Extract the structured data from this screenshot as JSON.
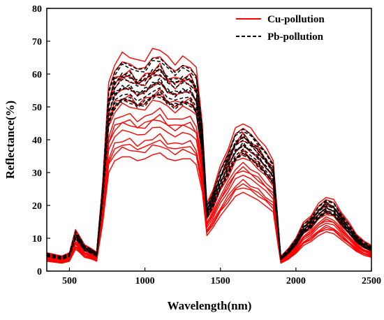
{
  "chart_data": {
    "type": "line",
    "title": "",
    "xlabel": "Wavelength(nm)",
    "ylabel": "Reflectance(%)",
    "xlim": [
      350,
      2500
    ],
    "ylim": [
      0,
      80
    ],
    "xticks": [
      500,
      1000,
      1500,
      2000,
      2500
    ],
    "yticks": [
      0,
      10,
      20,
      30,
      40,
      50,
      60,
      70,
      80
    ],
    "grid": false,
    "legend_position": "top-right",
    "x": [
      350,
      450,
      500,
      540,
      560,
      600,
      650,
      680,
      720,
      760,
      800,
      850,
      900,
      950,
      1000,
      1050,
      1100,
      1150,
      1200,
      1250,
      1300,
      1340,
      1380,
      1410,
      1450,
      1500,
      1550,
      1600,
      1650,
      1700,
      1750,
      1800,
      1850,
      1880,
      1900,
      1950,
      2000,
      2050,
      2100,
      2150,
      2200,
      2250,
      2300,
      2350,
      2400,
      2450,
      2500
    ],
    "baseline": [
      5,
      4,
      5,
      11,
      10,
      7,
      6,
      5,
      24,
      50,
      56,
      58,
      58,
      56,
      57,
      59,
      60,
      57,
      56,
      57,
      57,
      54,
      40,
      18,
      22,
      28,
      33,
      38,
      40,
      38,
      36,
      33,
      30,
      14,
      4,
      6,
      9,
      13,
      15,
      18,
      20,
      19,
      16,
      13,
      10,
      8,
      7
    ],
    "series": [
      {
        "name": "Cu-pollution",
        "color": "#ff0000",
        "dash": "solid",
        "line_count": 17,
        "scale_range": [
          0.6,
          1.12
        ],
        "visible_level": [
          [
            350,
            2500,
            5,
            7
          ]
        ]
      },
      {
        "name": "Pb-pollution",
        "color": "#000000",
        "dash": "dashed",
        "line_count": 13,
        "scale_range": [
          0.88,
          1.08
        ]
      }
    ]
  }
}
